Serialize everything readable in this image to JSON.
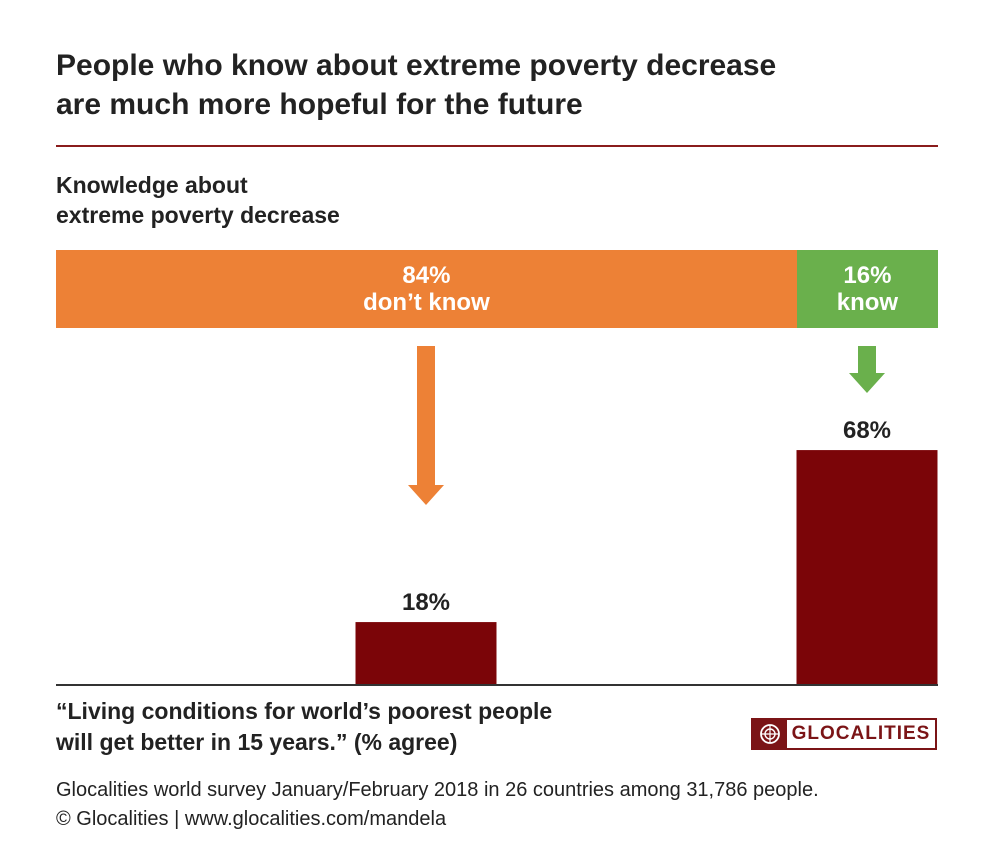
{
  "title_line1": "People who know about extreme poverty decrease",
  "title_line2": "are much more hopeful for the future",
  "subtitle_line1": "Knowledge about",
  "subtitle_line2": "extreme poverty decrease",
  "question_line1": "“Living conditions for world’s poorest people",
  "question_line2": "will get better in 15 years.” (% agree)",
  "source_line1": "Glocalities world survey January/February 2018 in 26 countries among 31,786 people.",
  "source_line2": "© Glocalities | www.glocalities.com/mandela",
  "logo_text": "GLOCALITIES",
  "colors": {
    "orange": "#ed8136",
    "green": "#6ab04c",
    "dark_red": "#7b0508",
    "rule": "#8a1c1c"
  },
  "chart_data": {
    "type": "bar",
    "knowledge_split": [
      {
        "group": "don’t know",
        "share": 84,
        "label_pct": "84%",
        "label_text": "don’t know",
        "color": "#ed8136"
      },
      {
        "group": "know",
        "share": 16,
        "label_pct": "16%",
        "label_text": "know",
        "color": "#6ab04c"
      }
    ],
    "categories": [
      "don’t know",
      "know"
    ],
    "values": [
      18,
      68
    ],
    "value_labels": [
      "18%",
      "68%"
    ],
    "ylabel": "% agree",
    "ylim": [
      0,
      100
    ]
  }
}
